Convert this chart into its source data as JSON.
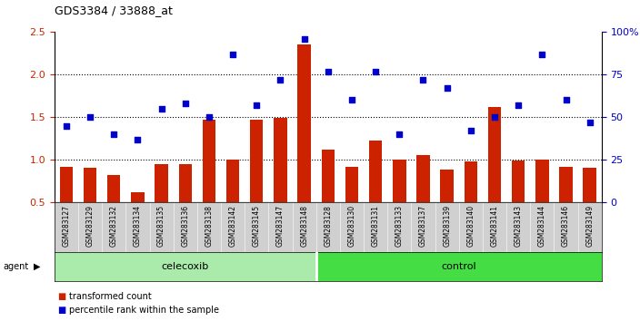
{
  "title": "GDS3384 / 33888_at",
  "samples": [
    "GSM283127",
    "GSM283129",
    "GSM283132",
    "GSM283134",
    "GSM283135",
    "GSM283136",
    "GSM283138",
    "GSM283142",
    "GSM283145",
    "GSM283147",
    "GSM283148",
    "GSM283128",
    "GSM283130",
    "GSM283131",
    "GSM283133",
    "GSM283137",
    "GSM283139",
    "GSM283140",
    "GSM283141",
    "GSM283143",
    "GSM283144",
    "GSM283146",
    "GSM283149"
  ],
  "bar_values": [
    0.92,
    0.9,
    0.82,
    0.62,
    0.95,
    0.95,
    1.47,
    1.0,
    1.47,
    1.49,
    2.35,
    1.12,
    0.92,
    1.22,
    1.0,
    1.05,
    0.88,
    0.98,
    1.62,
    0.99,
    1.0,
    0.92,
    0.9
  ],
  "dot_values": [
    45,
    50,
    40,
    37,
    55,
    58,
    50,
    87,
    57,
    72,
    96,
    77,
    60,
    77,
    40,
    72,
    67,
    42,
    50,
    57,
    87,
    60,
    47
  ],
  "group_labels": [
    "celecoxib",
    "control"
  ],
  "celecoxib_count": 11,
  "bar_color": "#cc2200",
  "dot_color": "#0000cc",
  "bg_plot": "#ffffff",
  "bg_labels": "#d0d0d0",
  "bg_celecoxib": "#aaeaaa",
  "bg_control": "#44dd44",
  "ylim_left": [
    0.5,
    2.5
  ],
  "ylim_right": [
    0,
    100
  ],
  "yticks_left": [
    0.5,
    1.0,
    1.5,
    2.0,
    2.5
  ],
  "yticks_right": [
    0,
    25,
    50,
    75,
    100
  ],
  "ytick_labels_right": [
    "0",
    "25",
    "50",
    "75",
    "100%"
  ],
  "hlines": [
    1.0,
    1.5,
    2.0
  ],
  "agent_label": "agent",
  "legend_bar": "transformed count",
  "legend_dot": "percentile rank within the sample"
}
